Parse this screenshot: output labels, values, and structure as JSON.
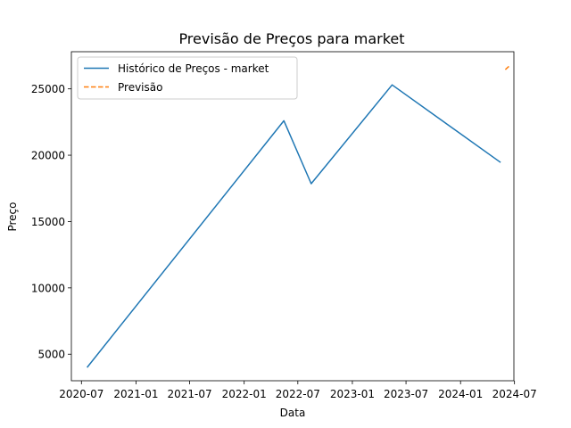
{
  "chart_data": {
    "type": "line",
    "title": "Previsão de Preços para market",
    "xlabel": "Data",
    "ylabel": "Preço",
    "xlim": [
      "2020-05-28",
      "2024-06-29"
    ],
    "ylim": [
      3000,
      27800
    ],
    "x_ticks": [
      {
        "date": "2020-07-01",
        "label": "2020-07"
      },
      {
        "date": "2021-01-01",
        "label": "2021-01"
      },
      {
        "date": "2021-07-01",
        "label": "2021-07"
      },
      {
        "date": "2022-01-01",
        "label": "2022-01"
      },
      {
        "date": "2022-07-01",
        "label": "2022-07"
      },
      {
        "date": "2023-01-01",
        "label": "2023-01"
      },
      {
        "date": "2023-07-01",
        "label": "2023-07"
      },
      {
        "date": "2024-01-01",
        "label": "2024-01"
      },
      {
        "date": "2024-07-01",
        "label": "2024-07"
      }
    ],
    "y_ticks": [
      5000,
      10000,
      15000,
      20000,
      25000
    ],
    "legend_position": "upper-left",
    "grid": false,
    "series": [
      {
        "name": "Histórico de Preços - market",
        "color": "#1f77b4",
        "style": "solid",
        "points": [
          {
            "x": "2020-07-20",
            "y": 4000
          },
          {
            "x": "2022-05-15",
            "y": 22600
          },
          {
            "x": "2022-08-15",
            "y": 17850
          },
          {
            "x": "2023-05-15",
            "y": 25300
          },
          {
            "x": "2024-05-15",
            "y": 19450
          }
        ]
      },
      {
        "name": "Previsão",
        "color": "#ff7f0e",
        "style": "dashed",
        "points": [
          {
            "x": "2024-05-31",
            "y": 26450
          },
          {
            "x": "2024-06-12",
            "y": 26700
          }
        ]
      }
    ]
  }
}
